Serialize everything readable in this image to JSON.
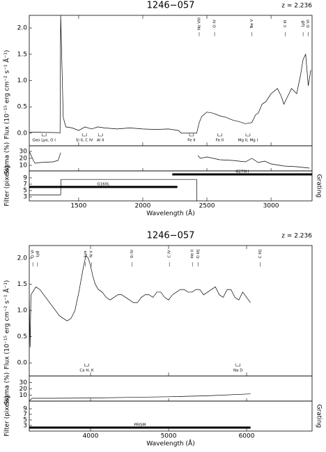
{
  "chart_data": [
    {
      "type": "line",
      "title": "1246−057",
      "subtitle": "z = 2.236",
      "xlabel": "Wavelength (Å)",
      "ylabel": "Flux (10⁻¹⁵ erg cm⁻² s⁻¹ Å⁻¹)",
      "xlim": [
        1115,
        3320
      ],
      "xticks": [
        1500,
        2000,
        2500,
        3000
      ],
      "ylim": [
        -0.24,
        2.24
      ],
      "yticks": [
        {
          "value": 0,
          "label": "0.0"
        },
        0.5,
        {
          "value": 1,
          "label": "1.0"
        },
        1.5,
        {
          "value": 2,
          "label": "2.0"
        }
      ],
      "x": [
        1115,
        1340,
        1355,
        1360,
        1380,
        1400,
        1450,
        1500,
        1550,
        1600,
        1650,
        1700,
        1800,
        1900,
        2000,
        2100,
        2200,
        2280,
        2300,
        2420,
        2440,
        2460,
        2500,
        2550,
        2600,
        2650,
        2700,
        2750,
        2800,
        2850,
        2880,
        2900,
        2930,
        2960,
        3000,
        3050,
        3080,
        3100,
        3130,
        3160,
        3200,
        3230,
        3250,
        3270,
        3290,
        3310
      ],
      "values": [
        0.02,
        0.01,
        0.0,
        2.24,
        0.3,
        0.12,
        0.1,
        0.05,
        0.12,
        0.08,
        0.12,
        0.1,
        0.08,
        0.1,
        0.08,
        0.07,
        0.08,
        0.05,
        0.0,
        0.0,
        0.2,
        0.32,
        0.4,
        0.38,
        0.33,
        0.3,
        0.25,
        0.22,
        0.18,
        0.2,
        0.35,
        0.38,
        0.55,
        0.6,
        0.75,
        0.85,
        0.7,
        0.55,
        0.7,
        0.85,
        0.75,
        1.1,
        1.4,
        1.5,
        0.9,
        1.2
      ],
      "color": "#000000",
      "sigma": {
        "label": "Sigma (%)",
        "ylim": [
          2,
          38
        ],
        "yticks": [
          10,
          20,
          30
        ],
        "x": [
          1115,
          1150,
          1160,
          1200,
          1300,
          1340,
          1360,
          1370,
          2430,
          2450,
          2500,
          2600,
          2700,
          2800,
          2850,
          2900,
          2950,
          3000,
          3100,
          3200,
          3300
        ],
        "values": [
          30,
          16,
          13,
          14,
          15,
          17,
          28,
          null,
          24,
          20,
          22,
          18,
          17,
          15,
          20,
          14,
          16,
          12,
          9,
          8,
          6
        ]
      },
      "filter": {
        "label": "Filter (pixels)",
        "ylim": [
          1.7,
          11.2
        ],
        "yticks": [
          3,
          5,
          7,
          9
        ],
        "x": [
          1115,
          1360,
          1362,
          2420,
          2422
        ],
        "values": [
          3.6,
          3.6,
          8.5,
          8.5,
          1.7
        ]
      },
      "grating_label": "Grating",
      "gratings": [
        {
          "name": "G160L",
          "start": 1115,
          "end": 2270
        },
        {
          "name": "G270H",
          "start": 2230,
          "end": 3320
        }
      ],
      "lines_top": [
        {
          "label": "Ne VIII",
          "wavelength": 2440
        },
        {
          "label": "O IV",
          "wavelength": 2560
        },
        {
          "label": "Ne V",
          "wavelength": 2850
        },
        {
          "label": "C III",
          "wavelength": 3110
        },
        {
          "label": "Lyβ",
          "wavelength": 3250
        },
        {
          "label": "O VI",
          "wavelength": 3290
        }
      ],
      "lines_bottom": [
        {
          "label": "Geo Lyα, O I",
          "wavelength": 1230
        },
        {
          "label": "Si II, C IV",
          "wavelength": 1545
        },
        {
          "label": "Al II",
          "wavelength": 1670
        },
        {
          "label": "Fe II",
          "wavelength": 2380
        },
        {
          "label": "Fe II",
          "wavelength": 2600
        },
        {
          "label": "Mg II, Mg I",
          "wavelength": 2820
        }
      ]
    },
    {
      "type": "line",
      "title": "1246−057",
      "subtitle": "z = 2.236",
      "xlabel": "Wavelength (Å)",
      "ylabel": "Flux (10⁻¹⁵ erg cm⁻² s⁻¹ Å⁻¹)",
      "xlim": [
        3214,
        6839
      ],
      "xticks": [
        4000,
        5000,
        6000
      ],
      "ylim": [
        -0.25,
        2.24
      ],
      "yticks": [
        {
          "value": 0,
          "label": "0.0"
        },
        0.5,
        {
          "value": 1,
          "label": "1.0"
        },
        1.5,
        {
          "value": 2,
          "label": "2.0"
        }
      ],
      "x": [
        3214,
        3225,
        3235,
        3300,
        3350,
        3400,
        3450,
        3500,
        3550,
        3600,
        3650,
        3700,
        3750,
        3800,
        3850,
        3880,
        3910,
        3940,
        3970,
        4000,
        4030,
        4060,
        4100,
        4150,
        4200,
        4250,
        4300,
        4350,
        4400,
        4450,
        4500,
        4550,
        4600,
        4650,
        4700,
        4750,
        4800,
        4850,
        4900,
        4950,
        5000,
        5050,
        5100,
        5150,
        5200,
        5250,
        5300,
        5350,
        5400,
        5450,
        5500,
        5550,
        5600,
        5650,
        5700,
        5750,
        5800,
        5850,
        5900,
        5950,
        6000,
        6050
      ],
      "values": [
        1.25,
        0.3,
        1.3,
        1.45,
        1.4,
        1.3,
        1.2,
        1.1,
        1.0,
        0.9,
        0.85,
        0.8,
        0.85,
        1.0,
        1.35,
        1.6,
        1.85,
        2.05,
        2.0,
        1.85,
        1.65,
        1.5,
        1.4,
        1.35,
        1.25,
        1.2,
        1.25,
        1.3,
        1.3,
        1.25,
        1.2,
        1.15,
        1.15,
        1.25,
        1.3,
        1.3,
        1.25,
        1.35,
        1.35,
        1.25,
        1.2,
        1.3,
        1.35,
        1.4,
        1.4,
        1.35,
        1.35,
        1.4,
        1.4,
        1.3,
        1.35,
        1.4,
        1.45,
        1.3,
        1.25,
        1.4,
        1.4,
        1.25,
        1.2,
        1.35,
        1.25,
        1.15
      ],
      "color": "#000000",
      "sigma": {
        "label": "Sigma (%)",
        "ylim": [
          0.6,
          40.6
        ],
        "yticks": [
          10,
          20,
          30
        ],
        "x": [
          3214,
          3250,
          3500,
          4000,
          4500,
          5000,
          5500,
          6050
        ],
        "values": [
          1,
          5,
          5,
          5.5,
          6.5,
          7.5,
          9,
          12
        ]
      },
      "filter": {
        "label": "Filter (pixels)",
        "ylim": [
          1,
          11.75
        ],
        "yticks": [
          3,
          5,
          7,
          9
        ]
      },
      "grating_label": "Grating",
      "gratings": [
        {
          "name": "PRISM",
          "start": 3214,
          "end": 6050
        }
      ],
      "lines_top": [
        {
          "label": "O VI",
          "wavelength": 3260
        },
        {
          "label": "Lyβ",
          "wavelength": 3320
        },
        {
          "label": "Lyα",
          "wavelength": 3934
        },
        {
          "label": "N V",
          "wavelength": 4010
        },
        {
          "label": "Si IV",
          "wavelength": 4530
        },
        {
          "label": "C IV",
          "wavelength": 5010
        },
        {
          "label": "He II",
          "wavelength": 5305
        },
        {
          "label": "O III]",
          "wavelength": 5380
        },
        {
          "label": "C III]",
          "wavelength": 6175
        }
      ],
      "lines_bottom": [
        {
          "label": "Ca H, K",
          "wavelength": 3950
        },
        {
          "label": "Na D",
          "wavelength": 5890
        }
      ]
    }
  ]
}
